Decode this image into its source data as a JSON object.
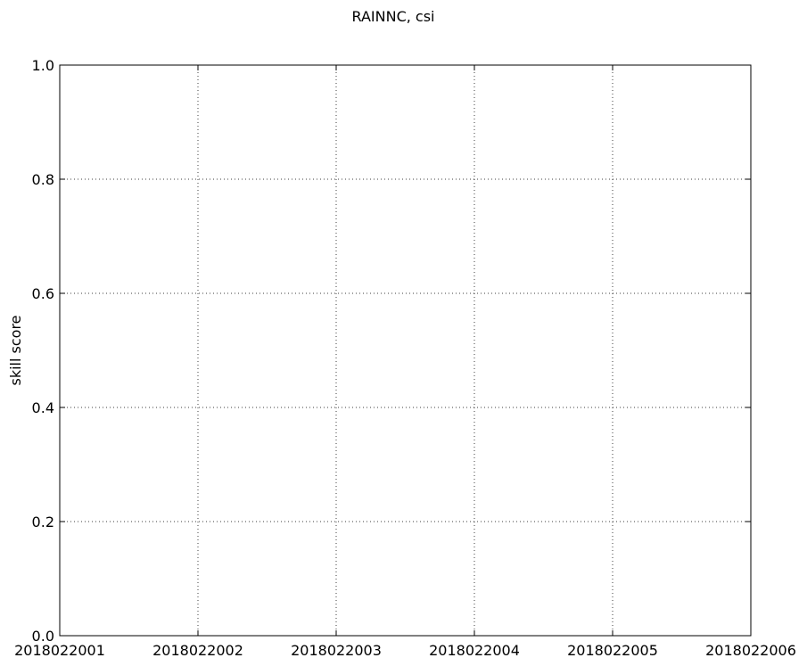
{
  "chart_data": {
    "type": "line",
    "title": "RAINNC, csi",
    "xlabel": "",
    "ylabel": "skill score",
    "categories": [
      "2018022001",
      "2018022002",
      "2018022003",
      "2018022004",
      "2018022005",
      "2018022006"
    ],
    "x_tick_labels": [
      "2018022001",
      "2018022002",
      "2018022003",
      "2018022004",
      "2018022005",
      "2018022006"
    ],
    "y_ticks": [
      0.0,
      0.2,
      0.4,
      0.6,
      0.8,
      1.0
    ],
    "y_tick_labels": [
      "0.0",
      "0.2",
      "0.4",
      "0.6",
      "0.8",
      "1.0"
    ],
    "ylim": [
      0.0,
      1.0
    ],
    "grid": true,
    "series": []
  }
}
